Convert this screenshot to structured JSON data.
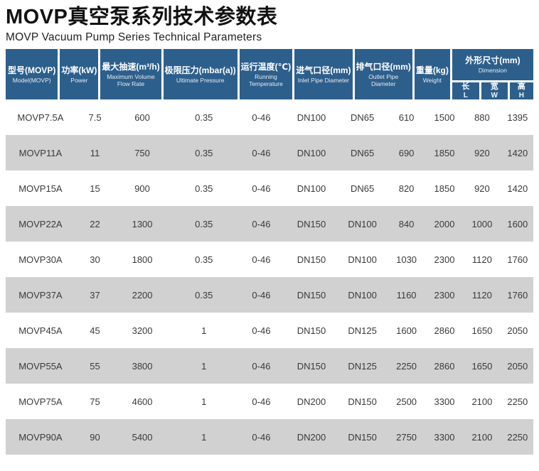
{
  "page": {
    "title": "MOVP真空泵系列技术参数表",
    "subtitle": "MOVP Vacuum Pump Series Technical Parameters"
  },
  "colors": {
    "header_bg": "#2d5f8c",
    "row_bg": "#ffffff",
    "row_alt_bg": "#d1d1d1",
    "body_text": "#3a3a3a"
  },
  "table": {
    "header": {
      "columns": [
        {
          "key": "model",
          "zh": "型号(MOVP)",
          "en": "Model(MOVP)"
        },
        {
          "key": "power",
          "zh": "功率(kW)",
          "en": "Power"
        },
        {
          "key": "max-flow",
          "zh": "最大抽速(m³/h)",
          "en": "Maximum Volume Flow Rate"
        },
        {
          "key": "ultimate-pressure",
          "zh": "极限压力(mbar(a))",
          "en": "Ultimate Pressure"
        },
        {
          "key": "running-temp",
          "zh": "运行温度(℃)",
          "en": "Running Temperature"
        },
        {
          "key": "inlet-diameter",
          "zh": "进气口径(mm)",
          "en": "Inlet Pipe Diameter"
        },
        {
          "key": "outlet-diameter",
          "zh": "排气口径(mm)",
          "en": "Outlet Pipe Diameter"
        },
        {
          "key": "weight",
          "zh": "重量(kg)",
          "en": "Weight"
        }
      ],
      "dimension_group": {
        "key": "dimension",
        "zh": "外形尺寸(mm)",
        "en": "Dimension",
        "sub": [
          {
            "key": "length",
            "zh": "长",
            "en": "L"
          },
          {
            "key": "width",
            "zh": "宽",
            "en": "W"
          },
          {
            "key": "height",
            "zh": "高",
            "en": "H"
          }
        ]
      }
    },
    "rows": [
      [
        "MOVP7.5A",
        "7.5",
        "600",
        "0.35",
        "0-46",
        "DN100",
        "DN65",
        "610",
        "1500",
        "880",
        "1395"
      ],
      [
        "MOVP11A",
        "11",
        "750",
        "0.35",
        "0-46",
        "DN100",
        "DN65",
        "690",
        "1850",
        "920",
        "1420"
      ],
      [
        "MOVP15A",
        "15",
        "900",
        "0.35",
        "0-46",
        "DN100",
        "DN65",
        "820",
        "1850",
        "920",
        "1420"
      ],
      [
        "MOVP22A",
        "22",
        "1300",
        "0.35",
        "0-46",
        "DN150",
        "DN100",
        "840",
        "2000",
        "1000",
        "1600"
      ],
      [
        "MOVP30A",
        "30",
        "1800",
        "0.35",
        "0-46",
        "DN150",
        "DN100",
        "1030",
        "2300",
        "1120",
        "1760"
      ],
      [
        "MOVP37A",
        "37",
        "2200",
        "0.35",
        "0-46",
        "DN150",
        "DN100",
        "1160",
        "2300",
        "1120",
        "1760"
      ],
      [
        "MOVP45A",
        "45",
        "3200",
        "1",
        "0-46",
        "DN150",
        "DN125",
        "1600",
        "2860",
        "1650",
        "2050"
      ],
      [
        "MOVP55A",
        "55",
        "3800",
        "1",
        "0-46",
        "DN150",
        "DN125",
        "2250",
        "2860",
        "1650",
        "2050"
      ],
      [
        "MOVP75A",
        "75",
        "4600",
        "1",
        "0-46",
        "DN200",
        "DN150",
        "2500",
        "3300",
        "2100",
        "2250"
      ],
      [
        "MOVP90A",
        "90",
        "5400",
        "1",
        "0-46",
        "DN200",
        "DN150",
        "2750",
        "3300",
        "2100",
        "2250"
      ]
    ]
  }
}
